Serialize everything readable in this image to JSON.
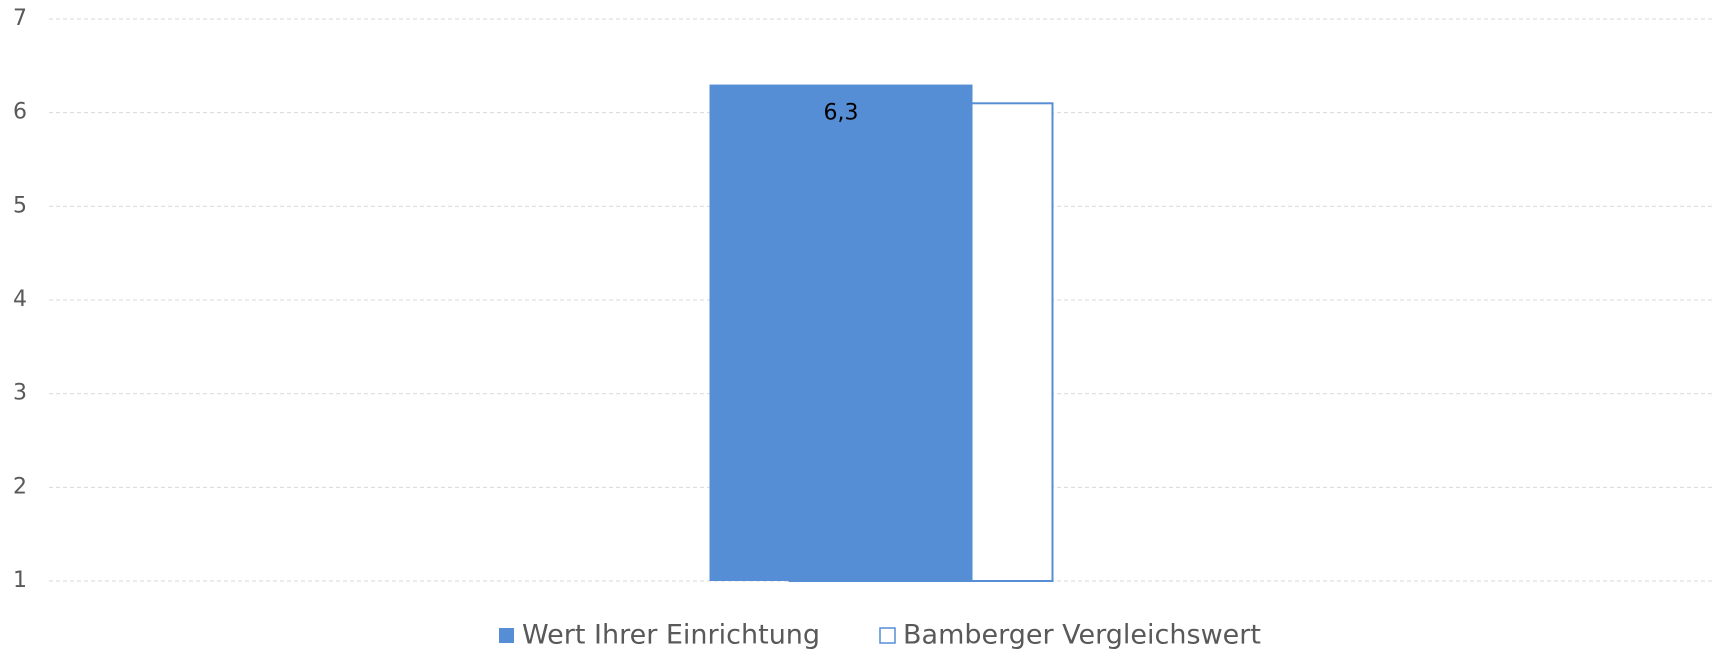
{
  "chart_data": {
    "type": "bar",
    "categories": [
      null
    ],
    "series": [
      {
        "name": "Wert Ihrer Einrichtung",
        "color": "#558ed5",
        "fill": "solid",
        "values": [
          6.3
        ],
        "value_labels": [
          "6,3"
        ]
      },
      {
        "name": "Bamberger Vergleichswert",
        "color": "#558ed5",
        "fill": "outline",
        "values": [
          6.1
        ]
      }
    ],
    "ylim": [
      1,
      7
    ],
    "yticks": [
      1,
      2,
      3,
      4,
      5,
      6,
      7
    ],
    "grid": true,
    "legend": "bottom"
  }
}
